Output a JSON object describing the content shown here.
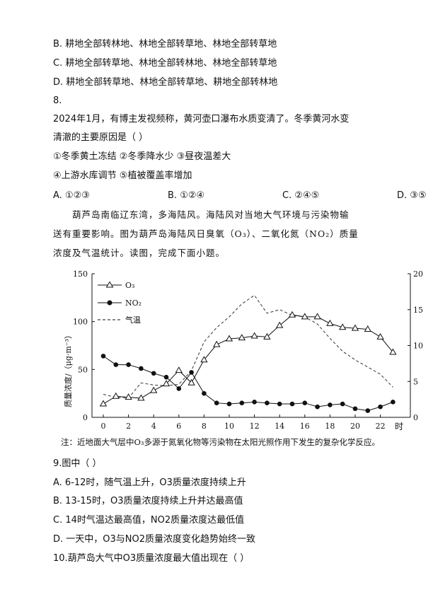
{
  "q7_options": [
    {
      "label": "B.",
      "text": "耕地全部转林地、林地全部转草地、林地全部转草地"
    },
    {
      "label": "C.",
      "text": "耕地全部转草地、林地全部转林地、林地全部转草地"
    },
    {
      "label": "D.",
      "text": "耕地全部转草地、林地全部转草地、耕地全部转林地"
    }
  ],
  "q8": {
    "number": "8.",
    "stem_line1": "2024年1月，有博主发视频称，黄河壶口瀑布水质变清了。冬季黄河水变",
    "stem_line2": "清澈的主要原因是（    ）",
    "items_line1": "①冬季黄土冻结  ②冬季降水少  ③昼夜温差大",
    "items_line2": "④上游水库调节  ⑤植被覆盖率增加",
    "options": [
      {
        "label": "A.",
        "text": "①②③"
      },
      {
        "label": "B.",
        "text": "①②④"
      },
      {
        "label": "C.",
        "text": "②④⑤"
      },
      {
        "label": "D.",
        "text": "③⑤"
      }
    ]
  },
  "passage": {
    "line1": "葫芦岛南临辽东湾，多海陆风。海陆风对当地大气环境与污染物输",
    "line2": "送有重要影响。图为葫芦岛海陆风日臭氧（O₃）、二氧化氮（NO₂）质量",
    "line3": "浓度及气温统计。读图，完成下面小题。"
  },
  "chart_data": {
    "type": "line",
    "xlabel": "时",
    "ylabel": "质量浓度/（μg·m⁻³）",
    "x_ticks": [
      "0",
      "2",
      "4",
      "6",
      "8",
      "10",
      "12",
      "14",
      "16",
      "18",
      "20",
      "22"
    ],
    "y_left_ticks": [
      "0",
      "50",
      "100",
      "150"
    ],
    "y_right_ticks": [
      "0",
      "5",
      "10",
      "15",
      "20"
    ],
    "ylim_left": [
      0,
      150
    ],
    "ylim_right": [
      0,
      20
    ],
    "legend": [
      {
        "name": "O₃",
        "marker": "open-triangle"
      },
      {
        "name": "NO₂",
        "marker": "filled-circle"
      },
      {
        "name": "气温",
        "marker": "dashed"
      }
    ],
    "legend_position": "top-left",
    "x": [
      0,
      1,
      2,
      3,
      4,
      5,
      6,
      7,
      8,
      9,
      10,
      11,
      12,
      13,
      14,
      15,
      16,
      17,
      18,
      19,
      20,
      21,
      22,
      23
    ],
    "series": [
      {
        "name": "O₃",
        "axis": "left",
        "values": [
          14,
          22,
          21,
          20,
          28,
          35,
          49,
          36,
          60,
          76,
          82,
          83,
          85,
          84,
          96,
          107,
          105,
          105,
          98,
          94,
          93,
          92,
          84,
          68
        ]
      },
      {
        "name": "NO₂",
        "axis": "left",
        "values": [
          64,
          55,
          55,
          51,
          46,
          42,
          30,
          47,
          25,
          15,
          14,
          15,
          16,
          15,
          14,
          14,
          15,
          11,
          13,
          14,
          9,
          7,
          11,
          16
        ]
      },
      {
        "name": "气温",
        "axis": "right",
        "values": [
          3.2,
          2.8,
          2.7,
          4.8,
          4.5,
          4.4,
          4.6,
          6.5,
          10.5,
          12.5,
          14,
          15.8,
          17,
          14.5,
          15,
          14.2,
          14,
          13,
          11,
          9.2,
          8,
          7,
          6,
          4.2
        ]
      }
    ]
  },
  "note": "注：近地面大气层中O₃多源于氮氧化物等污染物在太阳光照作用下发生的复杂化学反应。",
  "q9": {
    "stem": "9.图中（    ）",
    "options": [
      "A. 6-12时，随气温上升，O3质量浓度持续上升",
      "B. 13-15时，O3质量浓度持续上升并达最高值",
      "C. 14时气温达最高值，NO2质量浓度达最低值",
      "D. 一天中，O3与NO2质量浓度变化趋势始终一致"
    ]
  },
  "q10": {
    "stem": "10.葫芦岛大气中O3质量浓度最大值出现在（    ）"
  }
}
